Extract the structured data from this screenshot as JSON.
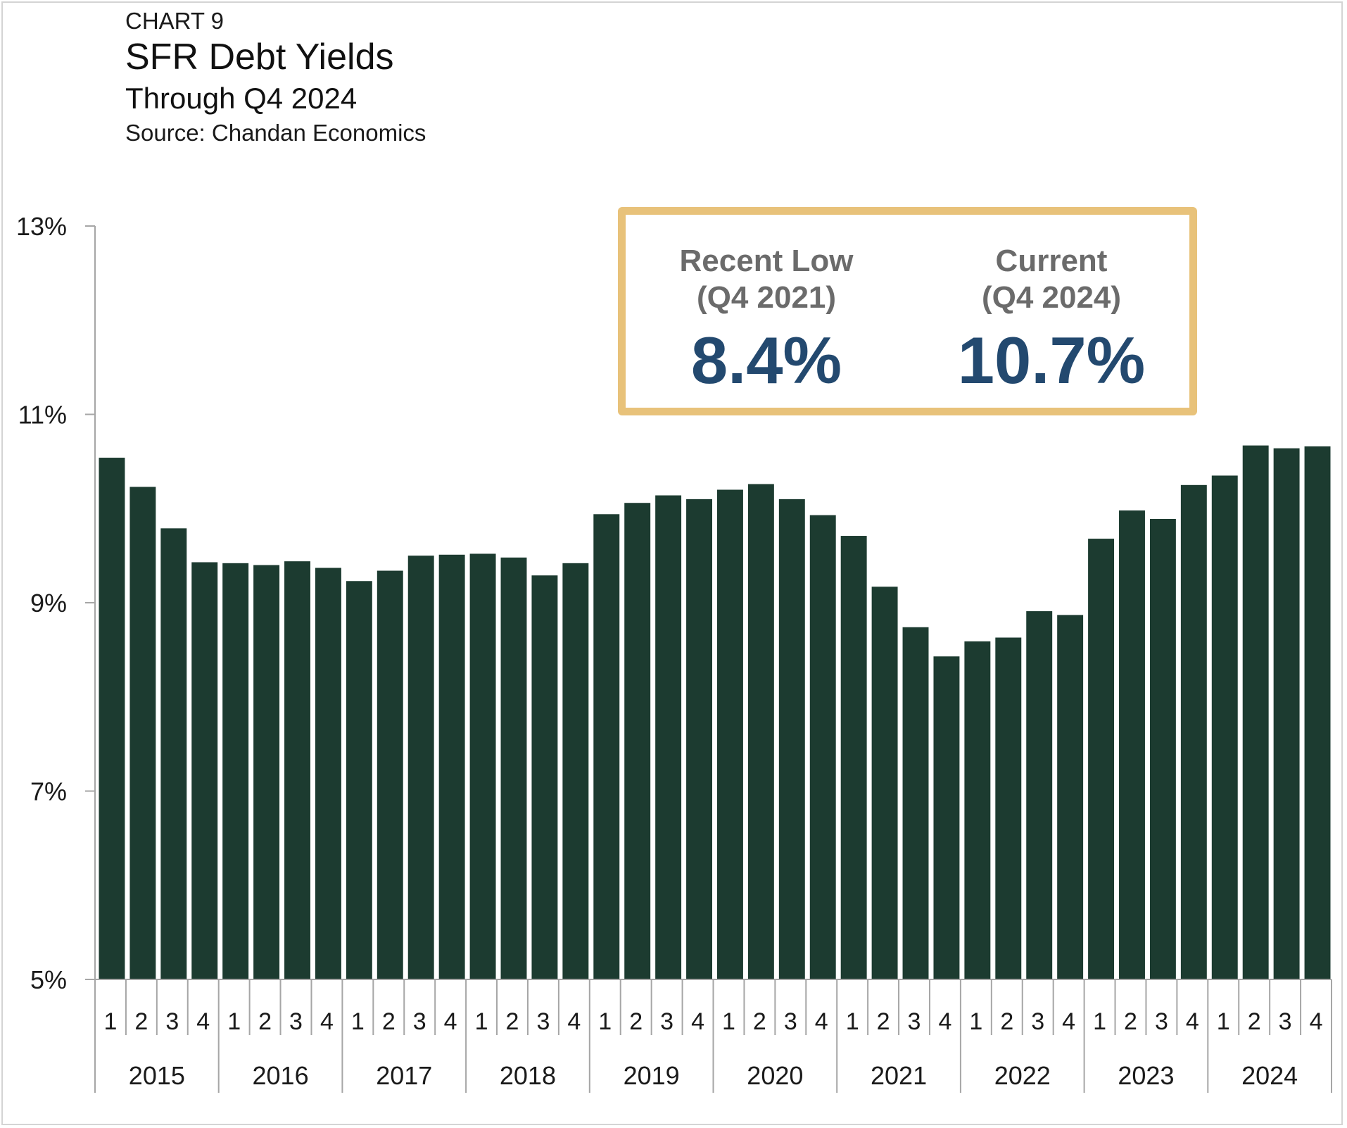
{
  "header": {
    "label": "CHART 9",
    "title": "SFR Debt Yields",
    "subtitle": "Through Q4 2024",
    "source": "Source: Chandan Economics"
  },
  "callout": {
    "left_label_line1": "Recent Low",
    "left_label_line2": "(Q4 2021)",
    "left_value": "8.4%",
    "right_label_line1": "Current",
    "right_label_line2": "(Q4 2024)",
    "right_value": "10.7%"
  },
  "colors": {
    "bar": "#1c3b30",
    "axis": "#a6a6a6",
    "callout_border": "#e8c27a",
    "callout_value": "#23496f",
    "callout_label": "#6b6b6b"
  },
  "chart_data": {
    "type": "bar",
    "title": "SFR Debt Yields",
    "subtitle": "Through Q4 2024",
    "ylim": [
      5,
      13
    ],
    "yticks": [
      5,
      7,
      9,
      11,
      13
    ],
    "ytick_labels": [
      "5%",
      "7%",
      "9%",
      "11%",
      "13%"
    ],
    "grid": false,
    "years": [
      "2015",
      "2016",
      "2017",
      "2018",
      "2019",
      "2020",
      "2021",
      "2022",
      "2023",
      "2024"
    ],
    "quarter_labels": [
      "1",
      "2",
      "3",
      "4"
    ],
    "categories": [
      "2015 Q1",
      "2015 Q2",
      "2015 Q3",
      "2015 Q4",
      "2016 Q1",
      "2016 Q2",
      "2016 Q3",
      "2016 Q4",
      "2017 Q1",
      "2017 Q2",
      "2017 Q3",
      "2017 Q4",
      "2018 Q1",
      "2018 Q2",
      "2018 Q3",
      "2018 Q4",
      "2019 Q1",
      "2019 Q2",
      "2019 Q3",
      "2019 Q4",
      "2020 Q1",
      "2020 Q2",
      "2020 Q3",
      "2020 Q4",
      "2021 Q1",
      "2021 Q2",
      "2021 Q3",
      "2021 Q4",
      "2022 Q1",
      "2022 Q2",
      "2022 Q3",
      "2022 Q4",
      "2023 Q1",
      "2023 Q2",
      "2023 Q3",
      "2023 Q4",
      "2024 Q1",
      "2024 Q2",
      "2024 Q3",
      "2024 Q4"
    ],
    "values": [
      10.54,
      10.23,
      9.79,
      9.43,
      9.42,
      9.4,
      9.44,
      9.37,
      9.23,
      9.34,
      9.5,
      9.51,
      9.52,
      9.48,
      9.29,
      9.42,
      9.94,
      10.06,
      10.14,
      10.1,
      10.2,
      10.26,
      10.1,
      9.93,
      9.71,
      9.17,
      8.74,
      8.43,
      8.59,
      8.63,
      8.91,
      8.87,
      9.68,
      9.98,
      9.89,
      10.25,
      10.35,
      10.67,
      10.64,
      10.66
    ]
  }
}
